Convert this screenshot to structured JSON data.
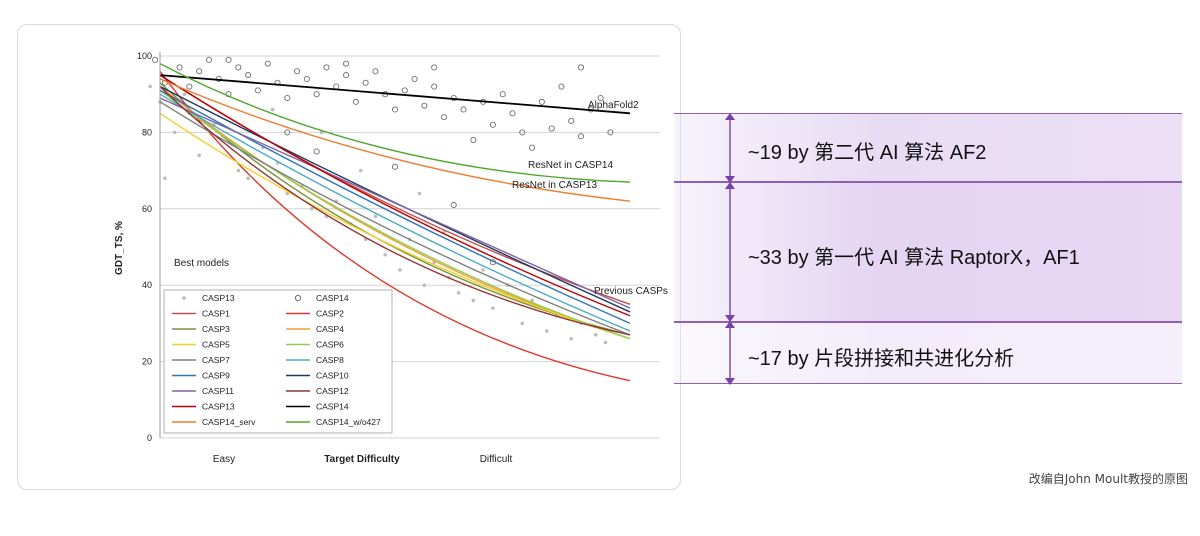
{
  "bands": [
    {
      "label": "~19 by 第二代 AI 算法 AF2"
    },
    {
      "label": "~33 by 第一代 AI 算法 RaptorX，AF1"
    },
    {
      "label": "~17 by 片段拼接和共进化分析"
    }
  ],
  "credit": "改编自John Moult教授的原图",
  "colors": {
    "band_fill": "#e8dcf4",
    "band_line": "#8e5fb8"
  },
  "chart_data": {
    "type": "line",
    "xlabel": "Target Difficulty",
    "ylabel": "GDT_TS, %",
    "x_tick_labels": [
      "Easy",
      "Difficult"
    ],
    "ylim": [
      0,
      100
    ],
    "y_ticks": [
      0,
      20,
      40,
      60,
      80,
      100
    ],
    "grid": "horizontal",
    "legend_location": "bottom-left",
    "annotations": [
      "AlphaFold2",
      "ResNet in CASP14",
      "ResNet in CASP13",
      "Previous CASPs",
      "Best models"
    ],
    "series": [
      {
        "name": "CASP13",
        "marker": "small-dot",
        "color": "#b5b5b5"
      },
      {
        "name": "CASP14",
        "marker": "open-circle",
        "color": "#777777"
      },
      {
        "name": "CASP1",
        "color": "#c0504d",
        "points": [
          [
            0,
            95
          ],
          [
            1,
            35
          ]
        ]
      },
      {
        "name": "CASP2",
        "color": "#e0362c",
        "points": [
          [
            0,
            96
          ],
          [
            1,
            15
          ]
        ]
      },
      {
        "name": "CASP3",
        "color": "#77933c",
        "points": [
          [
            0,
            93
          ],
          [
            1,
            27
          ]
        ]
      },
      {
        "name": "CASP4",
        "color": "#f59d3d",
        "points": [
          [
            0,
            92
          ],
          [
            1,
            26
          ]
        ]
      },
      {
        "name": "CASP5",
        "color": "#f2d027",
        "points": [
          [
            0,
            85
          ],
          [
            1,
            26
          ]
        ]
      },
      {
        "name": "CASP6",
        "color": "#92d050",
        "points": [
          [
            0,
            91
          ],
          [
            1,
            26
          ]
        ]
      },
      {
        "name": "CASP7",
        "color": "#7f7f7f",
        "points": [
          [
            0,
            88
          ],
          [
            1,
            27
          ]
        ]
      },
      {
        "name": "CASP8",
        "color": "#4bacc6",
        "points": [
          [
            0,
            90
          ],
          [
            1,
            28
          ]
        ]
      },
      {
        "name": "CASP9",
        "color": "#2e75b6",
        "points": [
          [
            0,
            91
          ],
          [
            1,
            30
          ]
        ]
      },
      {
        "name": "CASP10",
        "color": "#1f3864",
        "points": [
          [
            0,
            92
          ],
          [
            1,
            33
          ]
        ]
      },
      {
        "name": "CASP11",
        "color": "#8064a2",
        "points": [
          [
            0,
            89
          ],
          [
            1,
            34
          ]
        ]
      },
      {
        "name": "CASP12",
        "color": "#953735",
        "points": [
          [
            0,
            92
          ],
          [
            1,
            27
          ]
        ]
      },
      {
        "name": "CASP13",
        "color": "#c00000",
        "points": [
          [
            0,
            95
          ],
          [
            1,
            32
          ]
        ]
      },
      {
        "name": "CASP14",
        "color": "#000000",
        "points": [
          [
            0,
            95
          ],
          [
            1,
            85
          ]
        ]
      },
      {
        "name": "CASP14_serv",
        "color": "#ed7d31",
        "points": [
          [
            0,
            94
          ],
          [
            1,
            62
          ]
        ]
      },
      {
        "name": "CASP14_w/o427",
        "color": "#4ea72e",
        "points": [
          [
            0,
            98
          ],
          [
            1,
            67
          ]
        ]
      }
    ],
    "scatter_casp13": [
      [
        0.02,
        92
      ],
      [
        0.04,
        88
      ],
      [
        0.07,
        80
      ],
      [
        0.1,
        85
      ],
      [
        0.12,
        74
      ],
      [
        0.15,
        82
      ],
      [
        0.18,
        78
      ],
      [
        0.2,
        70
      ],
      [
        0.22,
        68
      ],
      [
        0.25,
        76
      ],
      [
        0.28,
        72
      ],
      [
        0.3,
        64
      ],
      [
        0.33,
        66
      ],
      [
        0.35,
        60
      ],
      [
        0.38,
        58
      ],
      [
        0.4,
        62
      ],
      [
        0.43,
        56
      ],
      [
        0.46,
        52
      ],
      [
        0.48,
        58
      ],
      [
        0.5,
        48
      ],
      [
        0.53,
        44
      ],
      [
        0.55,
        52
      ],
      [
        0.58,
        40
      ],
      [
        0.6,
        46
      ],
      [
        0.63,
        42
      ],
      [
        0.65,
        38
      ],
      [
        0.68,
        36
      ],
      [
        0.7,
        44
      ],
      [
        0.72,
        34
      ],
      [
        0.75,
        40
      ],
      [
        0.78,
        30
      ],
      [
        0.8,
        36
      ],
      [
        0.83,
        28
      ],
      [
        0.85,
        32
      ],
      [
        0.88,
        26
      ],
      [
        0.9,
        30
      ],
      [
        0.93,
        27
      ],
      [
        0.95,
        25
      ],
      [
        0.05,
        68
      ],
      [
        0.27,
        86
      ],
      [
        0.45,
        70
      ],
      [
        0.62,
        54
      ],
      [
        0.09,
        90
      ],
      [
        0.37,
        80
      ],
      [
        0.57,
        64
      ]
    ],
    "scatter_casp14": [
      [
        0.03,
        99
      ],
      [
        0.05,
        93
      ],
      [
        0.08,
        97
      ],
      [
        0.1,
        92
      ],
      [
        0.12,
        96
      ],
      [
        0.14,
        99
      ],
      [
        0.16,
        94
      ],
      [
        0.18,
        90
      ],
      [
        0.2,
        97
      ],
      [
        0.22,
        95
      ],
      [
        0.24,
        91
      ],
      [
        0.26,
        98
      ],
      [
        0.28,
        93
      ],
      [
        0.3,
        89
      ],
      [
        0.32,
        96
      ],
      [
        0.34,
        94
      ],
      [
        0.36,
        90
      ],
      [
        0.38,
        97
      ],
      [
        0.4,
        92
      ],
      [
        0.42,
        95
      ],
      [
        0.44,
        88
      ],
      [
        0.46,
        93
      ],
      [
        0.48,
        96
      ],
      [
        0.5,
        90
      ],
      [
        0.52,
        86
      ],
      [
        0.54,
        91
      ],
      [
        0.56,
        94
      ],
      [
        0.58,
        87
      ],
      [
        0.6,
        92
      ],
      [
        0.62,
        84
      ],
      [
        0.64,
        89
      ],
      [
        0.66,
        86
      ],
      [
        0.68,
        78
      ],
      [
        0.7,
        88
      ],
      [
        0.72,
        82
      ],
      [
        0.74,
        90
      ],
      [
        0.76,
        85
      ],
      [
        0.78,
        80
      ],
      [
        0.8,
        76
      ],
      [
        0.82,
        88
      ],
      [
        0.84,
        81
      ],
      [
        0.86,
        92
      ],
      [
        0.88,
        83
      ],
      [
        0.9,
        79
      ],
      [
        0.92,
        86
      ],
      [
        0.94,
        89
      ],
      [
        0.96,
        80
      ],
      [
        0.3,
        80
      ],
      [
        0.36,
        75
      ],
      [
        0.52,
        71
      ],
      [
        0.64,
        61
      ],
      [
        0.72,
        46
      ],
      [
        0.18,
        99
      ],
      [
        0.42,
        98
      ],
      [
        0.6,
        97
      ],
      [
        0.9,
        97
      ]
    ]
  }
}
